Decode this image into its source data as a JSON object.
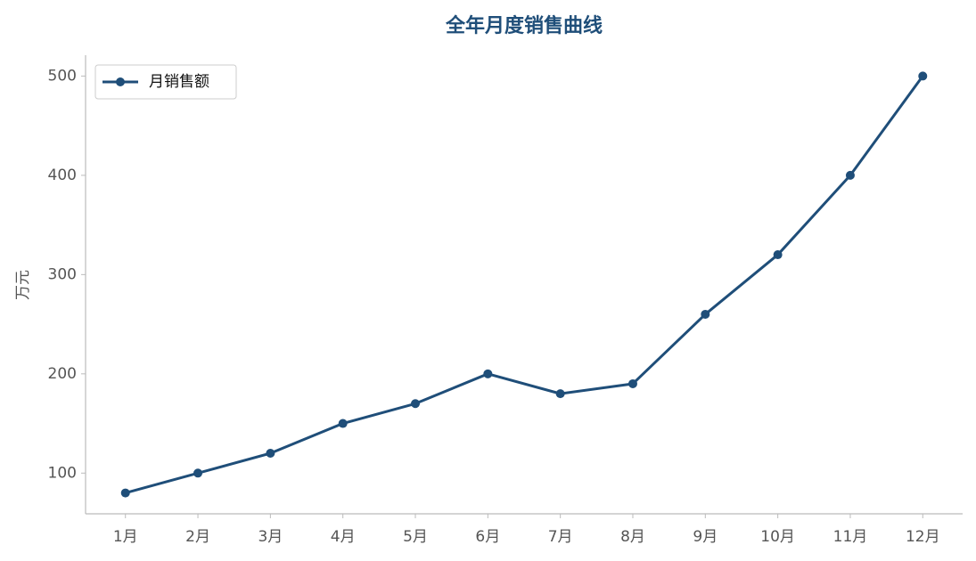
{
  "chart_data": {
    "type": "line",
    "title": "全年月度销售曲线",
    "y_label": "万元",
    "categories": [
      "1月",
      "2月",
      "3月",
      "4月",
      "5月",
      "6月",
      "7月",
      "8月",
      "9月",
      "10月",
      "11月",
      "12月"
    ],
    "series": [
      {
        "name": "月销售额",
        "color": "#1f4e79",
        "values": [
          80,
          100,
          120,
          150,
          170,
          200,
          180,
          190,
          260,
          320,
          400,
          500
        ]
      }
    ],
    "ylim": [
      59,
      521
    ],
    "yticks": [
      100,
      200,
      300,
      400,
      500
    ],
    "grid": false,
    "legend": "upper-left"
  }
}
